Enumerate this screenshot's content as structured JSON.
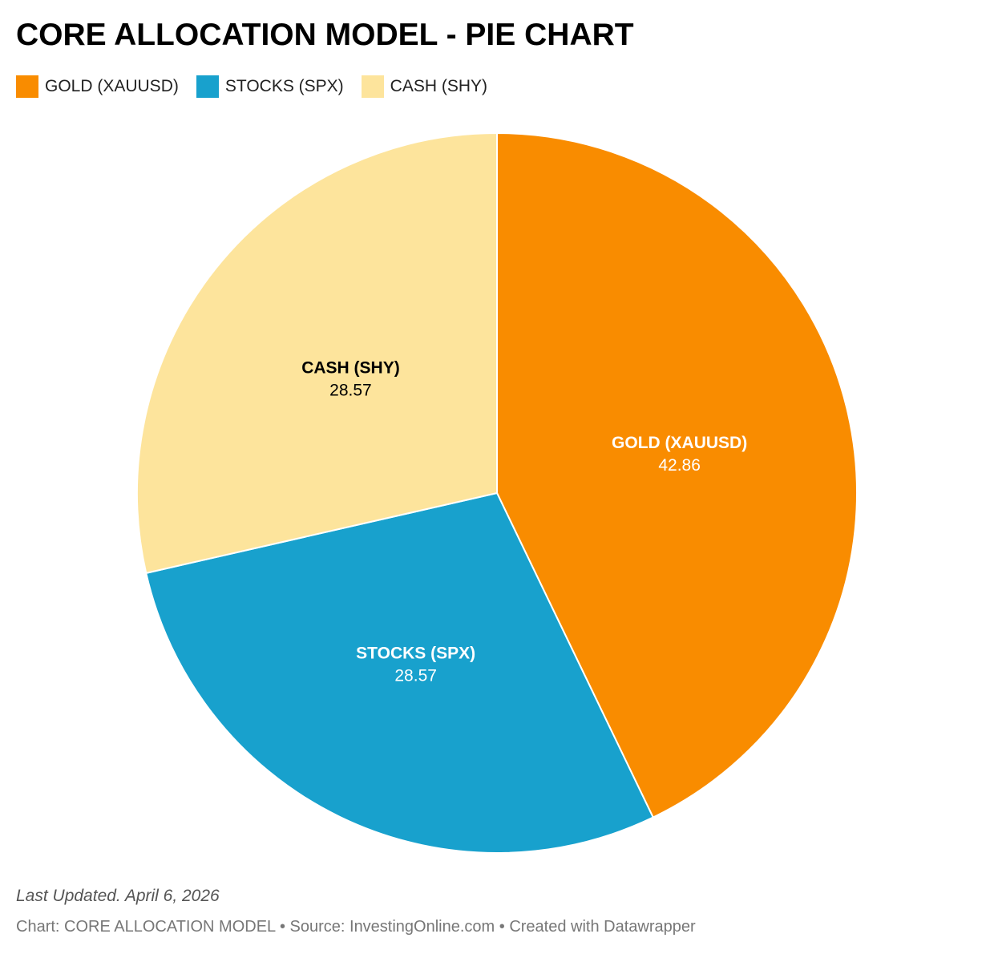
{
  "header": {
    "title": "CORE ALLOCATION MODEL - PIE CHART"
  },
  "legend": {
    "items": [
      {
        "label": "GOLD (XAUUSD)",
        "color": "#f98c00"
      },
      {
        "label": "STOCKS (SPX)",
        "color": "#18a1cd"
      },
      {
        "label": "CASH (SHY)",
        "color": "#fde49c"
      }
    ]
  },
  "chart_data": {
    "type": "pie",
    "title": "CORE ALLOCATION MODEL - PIE CHART",
    "legend_placement": "top-left",
    "slices": [
      {
        "label": "GOLD (XAUUSD)",
        "value": 42.86,
        "value_text": "42.86",
        "color": "#f98c00",
        "label_color": "#ffffff"
      },
      {
        "label": "STOCKS (SPX)",
        "value": 28.57,
        "value_text": "28.57",
        "color": "#18a1cd",
        "label_color": "#ffffff"
      },
      {
        "label": "CASH (SHY)",
        "value": 28.57,
        "value_text": "28.57",
        "color": "#fde49c",
        "label_color": "#000000"
      }
    ]
  },
  "footer": {
    "updated": "Last Updated. April 6, 2026",
    "source": "Chart: CORE ALLOCATION MODEL • Source: InvestingOnline.com • Created with Datawrapper"
  }
}
